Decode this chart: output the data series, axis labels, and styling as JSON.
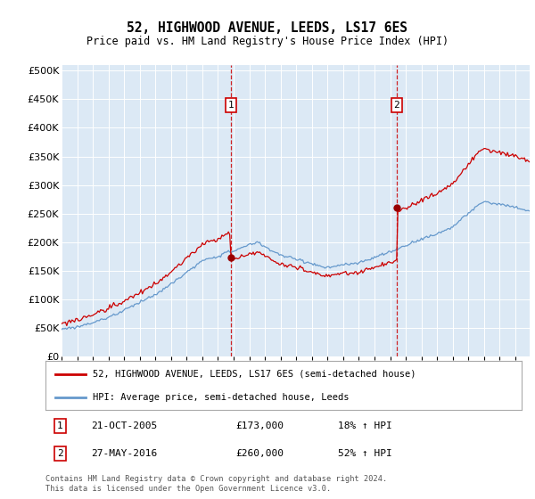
{
  "title": "52, HIGHWOOD AVENUE, LEEDS, LS17 6ES",
  "subtitle": "Price paid vs. HM Land Registry's House Price Index (HPI)",
  "ytick_values": [
    0,
    50000,
    100000,
    150000,
    200000,
    250000,
    300000,
    350000,
    400000,
    450000,
    500000
  ],
  "ylim": [
    0,
    510000
  ],
  "plot_bg_color": "#dce9f5",
  "transaction1_t": 2005.81,
  "transaction1_price": 173000,
  "transaction2_t": 2016.42,
  "transaction2_price": 260000,
  "legend_line1": "52, HIGHWOOD AVENUE, LEEDS, LS17 6ES (semi-detached house)",
  "legend_line2": "HPI: Average price, semi-detached house, Leeds",
  "footer": "Contains HM Land Registry data © Crown copyright and database right 2024.\nThis data is licensed under the Open Government Licence v3.0.",
  "red_line_color": "#cc0000",
  "blue_line_color": "#6699cc",
  "marker_color": "#990000"
}
